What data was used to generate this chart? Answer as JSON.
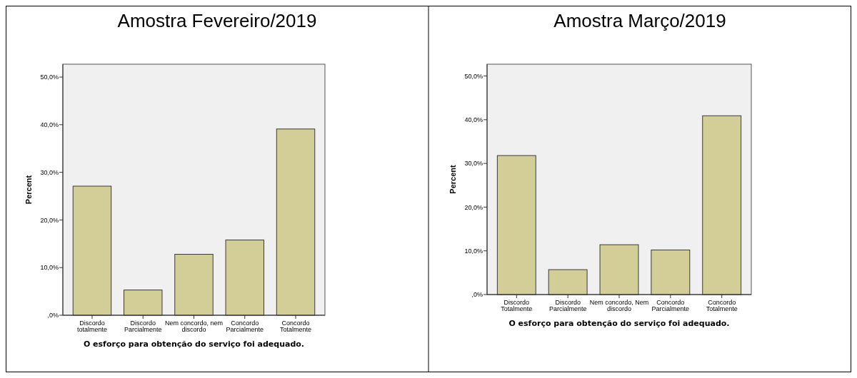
{
  "chart_data": [
    {
      "type": "bar",
      "title": "Amostra Fevereiro/2019",
      "xlabel": "O esforço para obtenção do serviço foi adequado.",
      "ylabel": "Percent",
      "categories": [
        "Discordo totalmente",
        "Discordo Parcialmente",
        "Nem concordo, nem discordo",
        "Concordo Parcialmente",
        "Concordo Totalmente"
      ],
      "values": [
        27.1,
        5.3,
        12.8,
        15.8,
        39.1
      ],
      "color": "#d3ce98",
      "ylim": [
        0,
        52.7
      ],
      "yticks": [
        {
          "value": 0,
          "label": ",0%"
        },
        {
          "value": 10,
          "label": "10,0%"
        },
        {
          "value": 20,
          "label": "20,0%"
        },
        {
          "value": 30,
          "label": "30,0%"
        },
        {
          "value": 40,
          "label": "40,0%"
        },
        {
          "value": 50,
          "label": "50,0%"
        }
      ],
      "grid": false
    },
    {
      "type": "bar",
      "title": "Amostra Março/2019",
      "xlabel": "O esforço para obtenção do serviço foi adequado.",
      "ylabel": "Percent",
      "categories": [
        "Discordo Totalmente",
        "Discordo Parcialmente",
        "Nem concordo, Nem discordo",
        "Concordo Parcialmente",
        "Concordo Totalmente"
      ],
      "values": [
        31.8,
        5.7,
        11.4,
        10.2,
        40.9
      ],
      "color": "#d3ce98",
      "ylim": [
        0,
        52.7
      ],
      "yticks": [
        {
          "value": 0,
          "label": ",0%"
        },
        {
          "value": 10,
          "label": "10,0%"
        },
        {
          "value": 20,
          "label": "20,0%"
        },
        {
          "value": 30,
          "label": "30,0%"
        },
        {
          "value": 40,
          "label": "40,0%"
        },
        {
          "value": 50,
          "label": "50,0%"
        }
      ],
      "grid": false
    }
  ]
}
